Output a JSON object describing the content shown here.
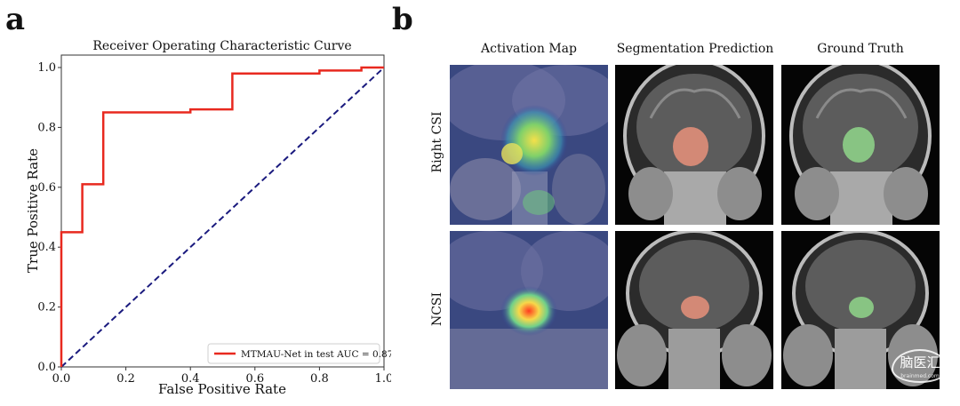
{
  "panels": {
    "a_letter": "a",
    "b_letter": "b"
  },
  "chart_data": {
    "type": "line",
    "title": "Receiver Operating Characteristic Curve",
    "xlabel": "False Positive Rate",
    "ylabel": "True Positive Rate",
    "xlim": [
      0.0,
      1.0
    ],
    "ylim": [
      0.0,
      1.0
    ],
    "xticks": [
      "0.0",
      "0.2",
      "0.4",
      "0.6",
      "0.8",
      "1.0"
    ],
    "yticks": [
      "0.0",
      "0.2",
      "0.4",
      "0.6",
      "0.8",
      "1.0"
    ],
    "grid": false,
    "legend_position": "lower-right",
    "series": [
      {
        "name": "MTMAU-Net in test AUC = 0.87",
        "color": "#e8291f",
        "style": "solid",
        "x": [
          0.0,
          0.0,
          0.065,
          0.065,
          0.13,
          0.13,
          0.4,
          0.4,
          0.53,
          0.53,
          0.8,
          0.8,
          0.93,
          0.93,
          1.0
        ],
        "y": [
          0.0,
          0.45,
          0.45,
          0.61,
          0.61,
          0.85,
          0.85,
          0.86,
          0.86,
          0.98,
          0.98,
          0.99,
          0.99,
          1.0,
          1.0
        ]
      },
      {
        "color": "#1a1a7e",
        "style": "dashed",
        "x": [
          0.0,
          1.0
        ],
        "y": [
          0.0,
          1.0
        ]
      }
    ]
  },
  "figure_b": {
    "columns": [
      "Activation Map",
      "Segmentation Prediction",
      "Ground Truth"
    ],
    "rows": [
      "Right CSI",
      "NCSI"
    ],
    "colors": {
      "prediction_overlay": "#e8907a",
      "ground_truth_overlay": "#8fd68a",
      "activation_hot": "#ff3b1f",
      "activation_base": "#2e3f9a"
    },
    "watermark": "脑医汇",
    "watermark_sub": "brainmed.com"
  }
}
